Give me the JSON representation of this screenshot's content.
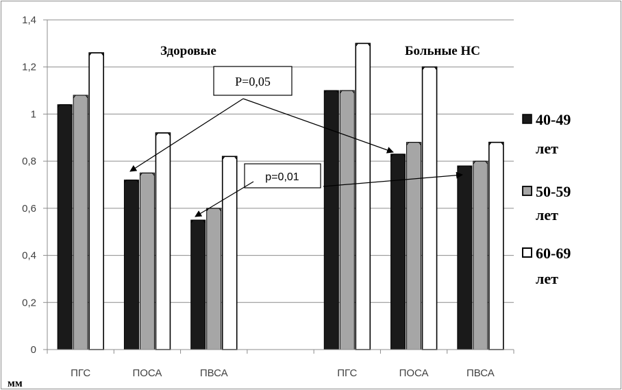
{
  "chart_data": {
    "type": "bar",
    "categories": [
      "ПГС",
      "ПОСА",
      "ПВСА",
      "",
      "ПГС",
      "ПОСА",
      "ПВСА"
    ],
    "groups": [
      "Здоровые",
      "Больные НС"
    ],
    "series": [
      {
        "name": "40-49 лет",
        "values": [
          1.04,
          0.72,
          0.55,
          null,
          1.1,
          0.83,
          0.78
        ],
        "color": "#1a1a1a"
      },
      {
        "name": "50-59 лет",
        "values": [
          1.08,
          0.75,
          0.6,
          null,
          1.1,
          0.88,
          0.8
        ],
        "color": "#a6a6a6"
      },
      {
        "name": "60-69 лет",
        "values": [
          1.26,
          0.92,
          0.82,
          null,
          1.3,
          1.2,
          0.88
        ],
        "color": "#ffffff"
      }
    ],
    "y_ticks": [
      "0",
      "0,2",
      "0,4",
      "0,6",
      "0,8",
      "1",
      "1,2",
      "1,4"
    ],
    "ylim": [
      0,
      1.4
    ],
    "ylabel": "мм",
    "grid": true,
    "legend_position": "right",
    "annotations": [
      {
        "text": "P=0,05"
      },
      {
        "text": "p=0,01"
      }
    ]
  }
}
